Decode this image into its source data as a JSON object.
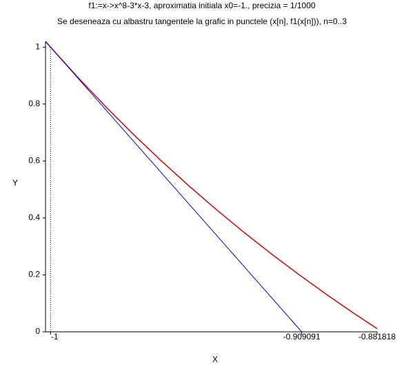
{
  "chart_data": {
    "type": "line",
    "title": "f1:=x->x^8-3*x-3, aproximatia initiala x0=-1.,  precizia = 1/1000",
    "subtitle": "Se deseneaza cu albastru tangentele la grafic in punctele (x[n], f1(x[n])), n=0..3",
    "x_label": "X",
    "y_label": "Y",
    "xlim": [
      -1.0018,
      -0.8818
    ],
    "ylim": [
      0,
      1.02
    ],
    "xticks": [
      -1,
      -0.909091,
      -0.881818
    ],
    "yticks": [
      0,
      0.2,
      0.4,
      0.6,
      0.8,
      1
    ],
    "series": [
      {
        "name": "f1",
        "color": "#e00000",
        "x": [
          -1.0018,
          -1,
          -0.99,
          -0.98,
          -0.97,
          -0.96,
          -0.95,
          -0.94,
          -0.93,
          -0.92,
          -0.91,
          -0.9,
          -0.89,
          -0.8818
        ],
        "values": [
          1.0199,
          1,
          0.8927,
          0.7908,
          0.6937,
          0.6014,
          0.5134,
          0.4296,
          0.3496,
          0.2732,
          0.2003,
          0.1305,
          0.0637,
          0.0111
        ]
      },
      {
        "name": "tangenta",
        "color": "#0000ff",
        "x": [
          -1.0018,
          -0.909091
        ],
        "values": [
          1.0198,
          0
        ]
      }
    ]
  }
}
